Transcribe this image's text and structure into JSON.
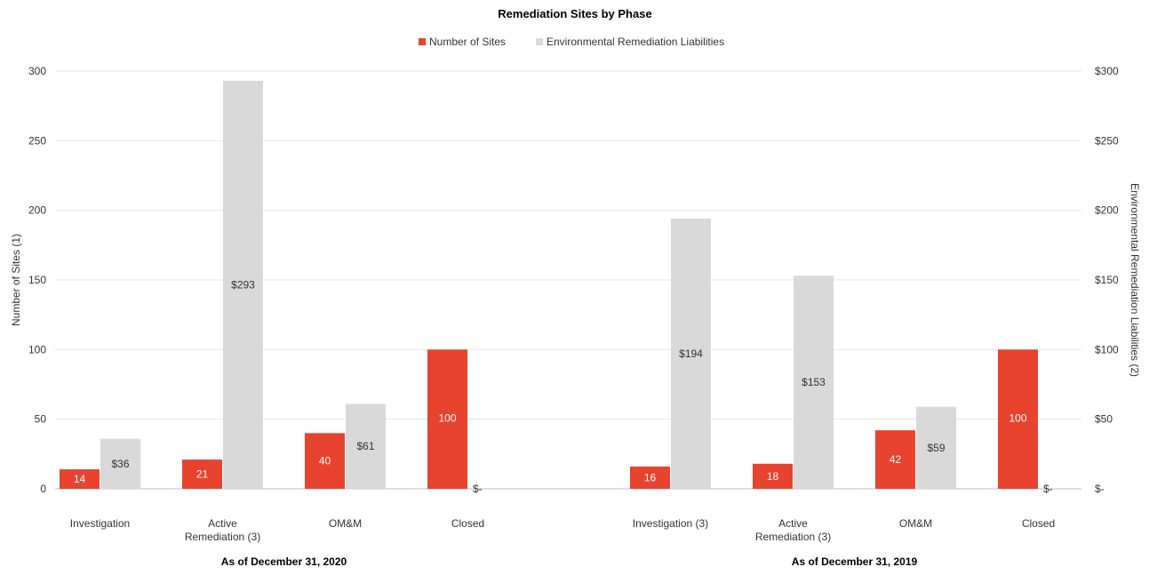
{
  "chart_data": {
    "type": "bar",
    "title": "Remediation Sites by Phase",
    "legend": {
      "position": "top",
      "entries": [
        {
          "name": "Number of Sites",
          "color": "#e8432f"
        },
        {
          "name": "Environmental Remediation Liabilities",
          "color": "#d9d9d9"
        }
      ]
    },
    "y_left": {
      "label": "Number of Sites (1)",
      "ylim": [
        0,
        300
      ],
      "ticks": [
        0,
        50,
        100,
        150,
        200,
        250,
        300
      ],
      "tick_labels": [
        "0",
        "50",
        "100",
        "150",
        "200",
        "250",
        "300"
      ]
    },
    "y_right": {
      "label": "Environmental Remediation Liabilities (2)",
      "ylim": [
        0,
        300
      ],
      "ticks": [
        0,
        50,
        100,
        150,
        200,
        250,
        300
      ],
      "tick_labels": [
        "$-",
        "$50",
        "$100",
        "$150",
        "$200",
        "$250",
        "$300"
      ]
    },
    "grid": true,
    "groups": [
      {
        "label": "As of December 31, 2020",
        "categories": [
          {
            "label": "Investigation",
            "sites": 14,
            "sites_label": "14",
            "liab": 36,
            "liab_label": "$36"
          },
          {
            "label": "Active\nRemediation (3)",
            "sites": 21,
            "sites_label": "21",
            "liab": 293,
            "liab_label": "$293"
          },
          {
            "label": "OM&M",
            "sites": 40,
            "sites_label": "40",
            "liab": 61,
            "liab_label": "$61"
          },
          {
            "label": "Closed",
            "sites": 100,
            "sites_label": "100",
            "liab": 0,
            "liab_label": "$-"
          }
        ]
      },
      {
        "label": "As of December 31, 2019",
        "categories": [
          {
            "label": "Investigation (3)",
            "sites": 16,
            "sites_label": "16",
            "liab": 194,
            "liab_label": "$194"
          },
          {
            "label": "Active\nRemediation (3)",
            "sites": 18,
            "sites_label": "18",
            "liab": 153,
            "liab_label": "$153"
          },
          {
            "label": "OM&M",
            "sites": 42,
            "sites_label": "42",
            "liab": 59,
            "liab_label": "$59"
          },
          {
            "label": "Closed",
            "sites": 100,
            "sites_label": "100",
            "liab": 0,
            "liab_label": "$-"
          }
        ]
      }
    ]
  }
}
